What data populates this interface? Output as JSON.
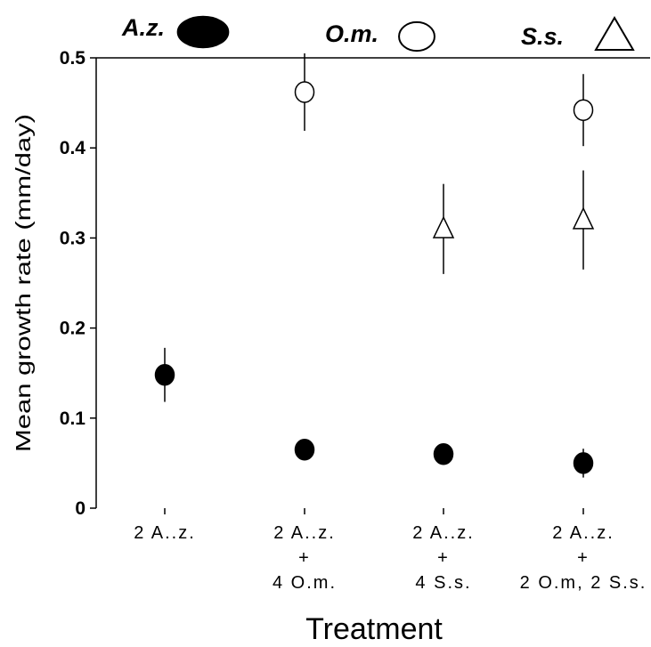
{
  "chart_data": {
    "type": "scatter",
    "x_label": "Treatment",
    "y_label": "Mean growth rate (mm/day)",
    "categories": [
      [
        "2 A..z."
      ],
      [
        "2 A..z.",
        "+",
        "4 O.m."
      ],
      [
        "2 A..z.",
        "+",
        "4 S.s."
      ],
      [
        "2 A..z.",
        "+",
        "2 O.m, 2 S.s."
      ]
    ],
    "ylim": [
      0,
      0.5
    ],
    "yticks": [
      0,
      0.1,
      0.2,
      0.3,
      0.4,
      0.5
    ],
    "series": [
      {
        "name": "A.z.",
        "marker": "circle",
        "color": "#000000",
        "values": [
          0.148,
          0.065,
          0.06,
          0.05
        ],
        "errors": [
          0.03,
          0.005,
          0.005,
          0.016
        ]
      },
      {
        "name": "O.m.",
        "marker": "circle",
        "color": "#ffffff",
        "values": [
          null,
          0.462,
          null,
          0.442
        ],
        "errors": [
          null,
          0.043,
          null,
          0.04
        ]
      },
      {
        "name": "S.s.",
        "marker": "triangle",
        "color": "#ffffff",
        "values": [
          null,
          null,
          0.31,
          0.32
        ],
        "errors": [
          null,
          null,
          0.05,
          0.055
        ]
      }
    ]
  }
}
